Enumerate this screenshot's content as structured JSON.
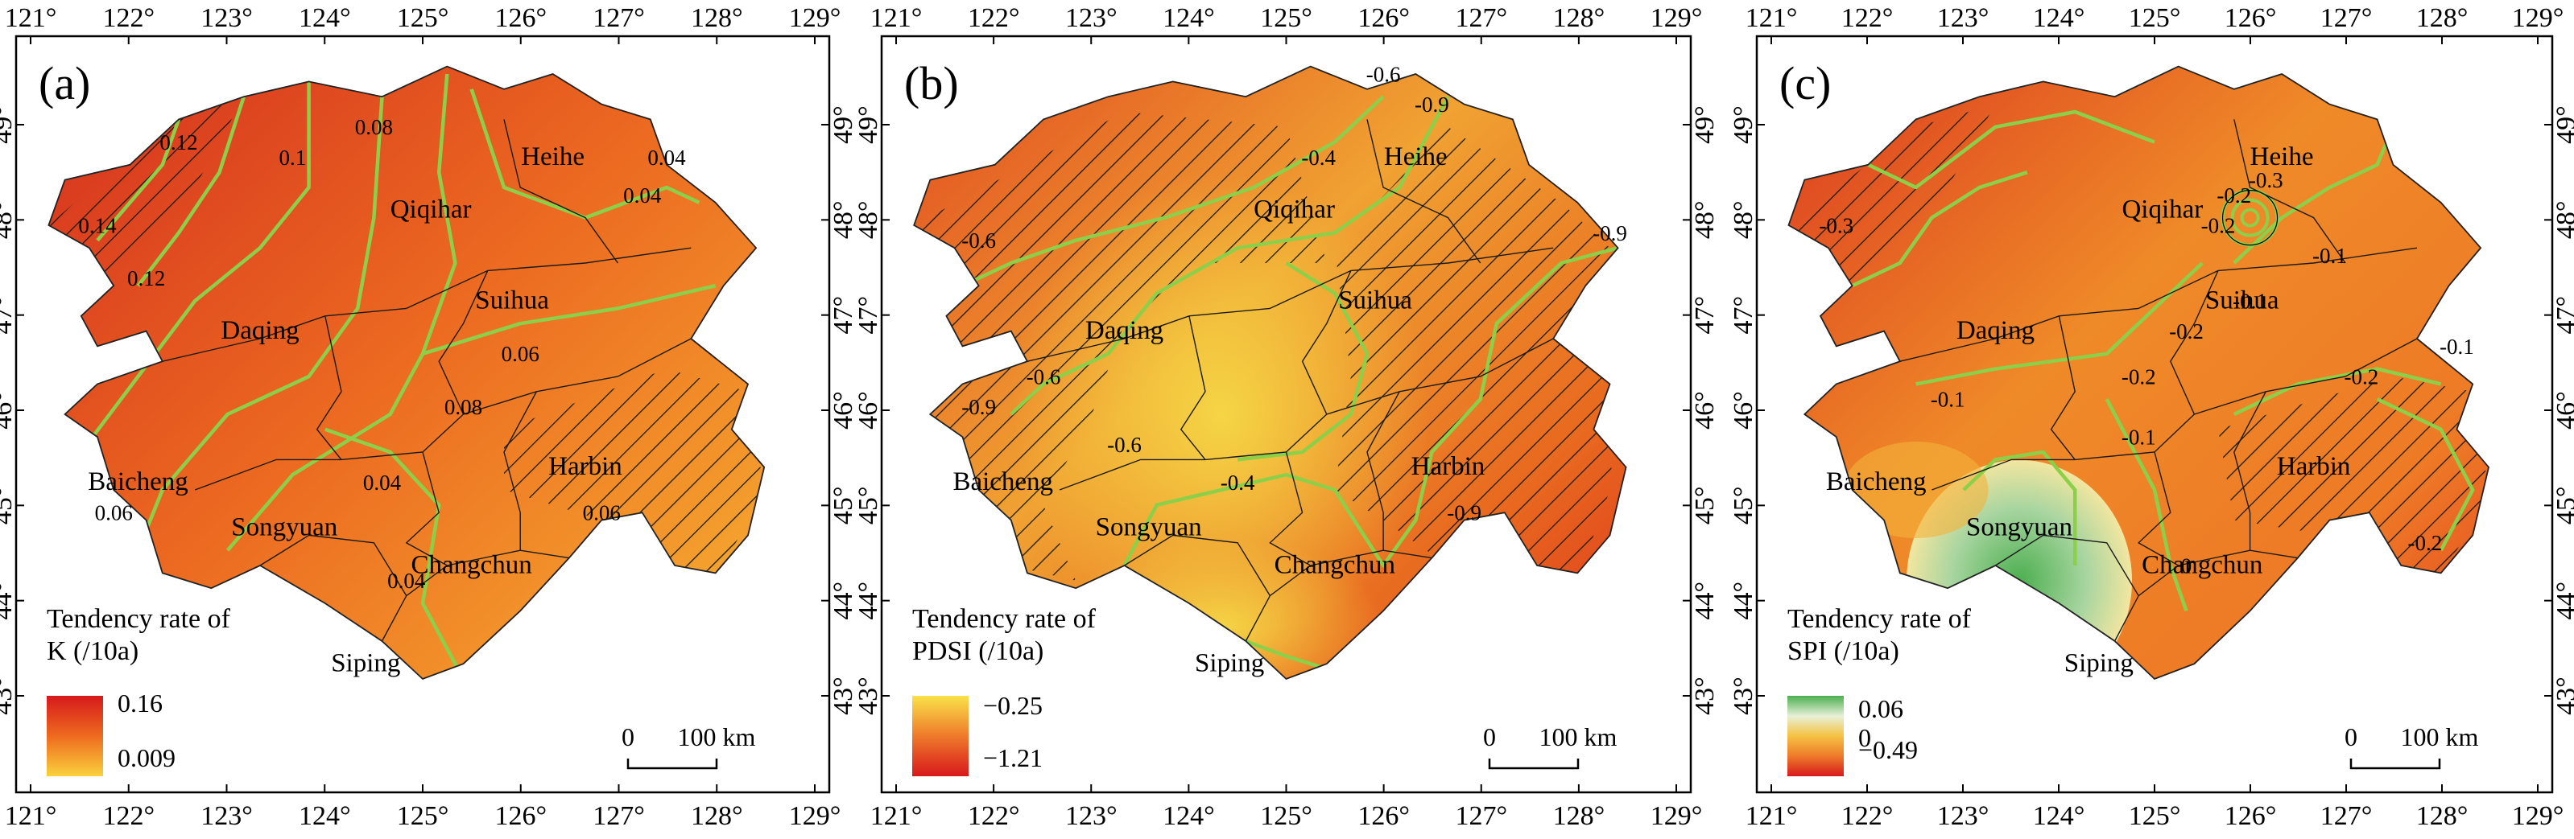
{
  "panels": [
    {
      "id": "a",
      "label": "(a)",
      "legend_title_line1": "Tendency rate of",
      "legend_title_line2": "K (/10a)",
      "legend_max": "0.16",
      "legend_min": "0.009",
      "legend_colors": [
        "#d7191c",
        "#ee6a1f",
        "#f9d13c"
      ],
      "cities": [
        "Heihe",
        "Qiqihar",
        "Suihua",
        "Daqing",
        "Harbin",
        "Baicheng",
        "Songyuan",
        "Changchun",
        "Siping"
      ],
      "contour_labels": [
        "0.14",
        "0.12",
        "0.12",
        "0.1",
        "0.08",
        "0.04",
        "0.04",
        "0.06",
        "0.08",
        "0.04",
        "0.06",
        "0.04",
        "0.06"
      ],
      "hatched_regions": [
        "northwest",
        "harbin-southeast"
      ]
    },
    {
      "id": "b",
      "label": "(b)",
      "legend_title_line1": "Tendency rate of",
      "legend_title_line2": "PDSI (/10a)",
      "legend_max": "−0.25",
      "legend_min": "−1.21",
      "legend_colors": [
        "#f9e24a",
        "#ee7a2a",
        "#d7191c"
      ],
      "cities": [
        "Heihe",
        "Qiqihar",
        "Suihua",
        "Daqing",
        "Harbin",
        "Baicheng",
        "Songyuan",
        "Changchun",
        "Siping"
      ],
      "contour_labels": [
        "-0.6",
        "-0.6",
        "-0.9",
        "-0.4",
        "-0.6",
        "-0.9",
        "-0.9",
        "-0.6",
        "-0.4",
        "-0.9"
      ],
      "hatched_regions": [
        "most-of-province-except-center"
      ]
    },
    {
      "id": "c",
      "label": "(c)",
      "legend_title_line1": "Tendency rate of",
      "legend_title_line2": "SPI (/10a)",
      "legend_max": "0.06",
      "legend_mid": "0",
      "legend_min": "−0.49",
      "legend_colors": [
        "#4caf50",
        "#e8f0d8",
        "#f5c242",
        "#ee7a2a",
        "#d7191c"
      ],
      "cities": [
        "Heihe",
        "Qiqihar",
        "Suihua",
        "Daqing",
        "Harbin",
        "Baicheng",
        "Songyuan",
        "Changchun",
        "Siping"
      ],
      "contour_labels": [
        "-0.3",
        "-0.2",
        "-0.2",
        "-0.3",
        "-0.1",
        "-0.1",
        "-0.1",
        "-0.2",
        "-0.2",
        "-0.2",
        "-0.1",
        "0",
        "-0.2",
        "-0.1"
      ],
      "hatched_regions": [
        "northwest",
        "harbin-southeast"
      ]
    }
  ],
  "axes": {
    "lon_ticks": [
      "121°",
      "122°",
      "123°",
      "124°",
      "125°",
      "126°",
      "127°",
      "128°",
      "129°"
    ],
    "lat_ticks": [
      "49°",
      "48°",
      "47°",
      "46°",
      "45°",
      "44°",
      "43°"
    ]
  },
  "scale_bar": {
    "zero": "0",
    "distance": "100 km"
  }
}
